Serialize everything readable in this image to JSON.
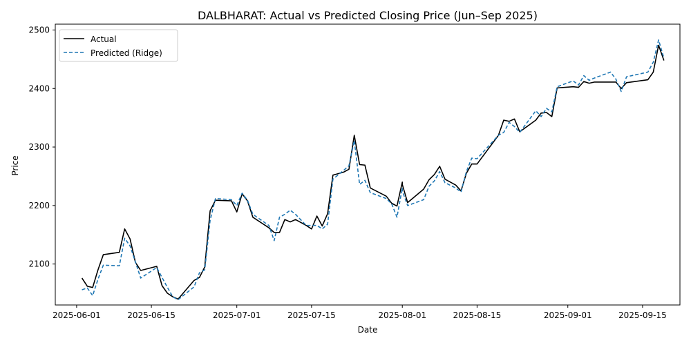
{
  "chart_data": {
    "type": "line",
    "title": "DALBHARAT: Actual vs Predicted Closing Price (Jun–Sep 2025)",
    "xlabel": "Date",
    "ylabel": "Price",
    "xlim": [
      "2025-05-28",
      "2025-09-22"
    ],
    "ylim": [
      2030,
      2510
    ],
    "x_ticks": [
      "2025-06-01",
      "2025-06-15",
      "2025-07-01",
      "2025-07-15",
      "2025-08-01",
      "2025-08-15",
      "2025-09-01",
      "2025-09-15"
    ],
    "y_ticks": [
      2100,
      2200,
      2300,
      2400,
      2500
    ],
    "grid": false,
    "legend_position": "top-left",
    "series": [
      {
        "name": "Actual",
        "color": "#000000",
        "style": "solid",
        "points": [
          [
            "2025-06-02",
            2076
          ],
          [
            "2025-06-03",
            2062
          ],
          [
            "2025-06-04",
            2060
          ],
          [
            "2025-06-05",
            2090
          ],
          [
            "2025-06-06",
            2116
          ],
          [
            "2025-06-09",
            2120
          ],
          [
            "2025-06-10",
            2160
          ],
          [
            "2025-06-11",
            2143
          ],
          [
            "2025-06-12",
            2103
          ],
          [
            "2025-06-13",
            2089
          ],
          [
            "2025-06-16",
            2096
          ],
          [
            "2025-06-17",
            2063
          ],
          [
            "2025-06-18",
            2050
          ],
          [
            "2025-06-19",
            2044
          ],
          [
            "2025-06-20",
            2040
          ],
          [
            "2025-06-23",
            2072
          ],
          [
            "2025-06-24",
            2077
          ],
          [
            "2025-06-25",
            2095
          ],
          [
            "2025-06-26",
            2191
          ],
          [
            "2025-06-27",
            2209
          ],
          [
            "2025-06-30",
            2208
          ],
          [
            "2025-07-01",
            2189
          ],
          [
            "2025-07-02",
            2220
          ],
          [
            "2025-07-03",
            2208
          ],
          [
            "2025-07-04",
            2180
          ],
          [
            "2025-07-07",
            2162
          ],
          [
            "2025-07-08",
            2154
          ],
          [
            "2025-07-09",
            2154
          ],
          [
            "2025-07-10",
            2176
          ],
          [
            "2025-07-11",
            2172
          ],
          [
            "2025-07-12",
            2176
          ],
          [
            "2025-07-14",
            2166
          ],
          [
            "2025-07-15",
            2160
          ],
          [
            "2025-07-16",
            2182
          ],
          [
            "2025-07-17",
            2165
          ],
          [
            "2025-07-18",
            2186
          ],
          [
            "2025-07-19",
            2252
          ],
          [
            "2025-07-21",
            2257
          ],
          [
            "2025-07-22",
            2262
          ],
          [
            "2025-07-23",
            2320
          ],
          [
            "2025-07-24",
            2270
          ],
          [
            "2025-07-25",
            2269
          ],
          [
            "2025-07-26",
            2230
          ],
          [
            "2025-07-29",
            2216
          ],
          [
            "2025-07-30",
            2204
          ],
          [
            "2025-07-31",
            2199
          ],
          [
            "2025-08-01",
            2240
          ],
          [
            "2025-08-01",
            2236
          ],
          [
            "2025-08-02",
            2205
          ],
          [
            "2025-08-05",
            2228
          ],
          [
            "2025-08-06",
            2244
          ],
          [
            "2025-08-07",
            2253
          ],
          [
            "2025-08-08",
            2267
          ],
          [
            "2025-08-09",
            2245
          ],
          [
            "2025-08-11",
            2235
          ],
          [
            "2025-08-12",
            2225
          ],
          [
            "2025-08-13",
            2255
          ],
          [
            "2025-08-14",
            2271
          ],
          [
            "2025-08-15",
            2271
          ],
          [
            "2025-08-19",
            2320
          ],
          [
            "2025-08-20",
            2346
          ],
          [
            "2025-08-21",
            2344
          ],
          [
            "2025-08-22",
            2348
          ],
          [
            "2025-08-23",
            2326
          ],
          [
            "2025-08-26",
            2346
          ],
          [
            "2025-08-27",
            2358
          ],
          [
            "2025-08-28",
            2359
          ],
          [
            "2025-08-29",
            2352
          ],
          [
            "2025-08-30",
            2401
          ],
          [
            "2025-09-02",
            2403
          ],
          [
            "2025-09-03",
            2402
          ],
          [
            "2025-09-04",
            2412
          ],
          [
            "2025-09-05",
            2409
          ],
          [
            "2025-09-06",
            2411
          ],
          [
            "2025-09-09",
            2411
          ],
          [
            "2025-09-10",
            2411
          ],
          [
            "2025-09-11",
            2400
          ],
          [
            "2025-09-12",
            2410
          ],
          [
            "2025-09-16",
            2415
          ],
          [
            "2025-09-17",
            2428
          ],
          [
            "2025-09-18",
            2474
          ],
          [
            "2025-09-19",
            2448
          ]
        ]
      },
      {
        "name": "Predicted (Ridge)",
        "color": "#1f77b4",
        "style": "dashed",
        "points": [
          [
            "2025-06-02",
            2056
          ],
          [
            "2025-06-03",
            2059
          ],
          [
            "2025-06-04",
            2046
          ],
          [
            "2025-06-05",
            2074
          ],
          [
            "2025-06-06",
            2098
          ],
          [
            "2025-06-09",
            2097
          ],
          [
            "2025-06-10",
            2144
          ],
          [
            "2025-06-11",
            2131
          ],
          [
            "2025-06-12",
            2104
          ],
          [
            "2025-06-13",
            2076
          ],
          [
            "2025-06-16",
            2094
          ],
          [
            "2025-06-17",
            2077
          ],
          [
            "2025-06-18",
            2060
          ],
          [
            "2025-06-19",
            2044
          ],
          [
            "2025-06-20",
            2039
          ],
          [
            "2025-06-23",
            2061
          ],
          [
            "2025-06-24",
            2085
          ],
          [
            "2025-06-25",
            2090
          ],
          [
            "2025-06-26",
            2175
          ],
          [
            "2025-06-27",
            2212
          ],
          [
            "2025-06-30",
            2210
          ],
          [
            "2025-07-01",
            2200
          ],
          [
            "2025-07-02",
            2221
          ],
          [
            "2025-07-03",
            2209
          ],
          [
            "2025-07-04",
            2185
          ],
          [
            "2025-07-07",
            2166
          ],
          [
            "2025-07-08",
            2140
          ],
          [
            "2025-07-09",
            2180
          ],
          [
            "2025-07-10",
            2185
          ],
          [
            "2025-07-11",
            2192
          ],
          [
            "2025-07-12",
            2185
          ],
          [
            "2025-07-14",
            2166
          ],
          [
            "2025-07-15",
            2166
          ],
          [
            "2025-07-16",
            2166
          ],
          [
            "2025-07-17",
            2160
          ],
          [
            "2025-07-18",
            2168
          ],
          [
            "2025-07-19",
            2245
          ],
          [
            "2025-07-21",
            2260
          ],
          [
            "2025-07-22",
            2268
          ],
          [
            "2025-07-23",
            2311
          ],
          [
            "2025-07-24",
            2236
          ],
          [
            "2025-07-25",
            2243
          ],
          [
            "2025-07-26",
            2222
          ],
          [
            "2025-07-29",
            2212
          ],
          [
            "2025-07-30",
            2203
          ],
          [
            "2025-07-31",
            2180
          ],
          [
            "2025-08-01",
            2230
          ],
          [
            "2025-08-01",
            2225
          ],
          [
            "2025-08-02",
            2200
          ],
          [
            "2025-08-05",
            2210
          ],
          [
            "2025-08-06",
            2233
          ],
          [
            "2025-08-07",
            2242
          ],
          [
            "2025-08-08",
            2258
          ],
          [
            "2025-08-09",
            2239
          ],
          [
            "2025-08-11",
            2230
          ],
          [
            "2025-08-12",
            2223
          ],
          [
            "2025-08-13",
            2258
          ],
          [
            "2025-08-14",
            2281
          ],
          [
            "2025-08-15",
            2280
          ],
          [
            "2025-08-19",
            2320
          ],
          [
            "2025-08-20",
            2325
          ],
          [
            "2025-08-21",
            2342
          ],
          [
            "2025-08-22",
            2335
          ],
          [
            "2025-08-23",
            2325
          ],
          [
            "2025-08-26",
            2362
          ],
          [
            "2025-08-27",
            2352
          ],
          [
            "2025-08-28",
            2366
          ],
          [
            "2025-08-29",
            2360
          ],
          [
            "2025-08-30",
            2403
          ],
          [
            "2025-09-02",
            2413
          ],
          [
            "2025-09-03",
            2406
          ],
          [
            "2025-09-04",
            2422
          ],
          [
            "2025-09-05",
            2414
          ],
          [
            "2025-09-06",
            2418
          ],
          [
            "2025-09-09",
            2428
          ],
          [
            "2025-09-10",
            2416
          ],
          [
            "2025-09-11",
            2395
          ],
          [
            "2025-09-12",
            2420
          ],
          [
            "2025-09-16",
            2428
          ],
          [
            "2025-09-17",
            2445
          ],
          [
            "2025-09-18",
            2483
          ],
          [
            "2025-09-19",
            2452
          ]
        ]
      }
    ]
  }
}
